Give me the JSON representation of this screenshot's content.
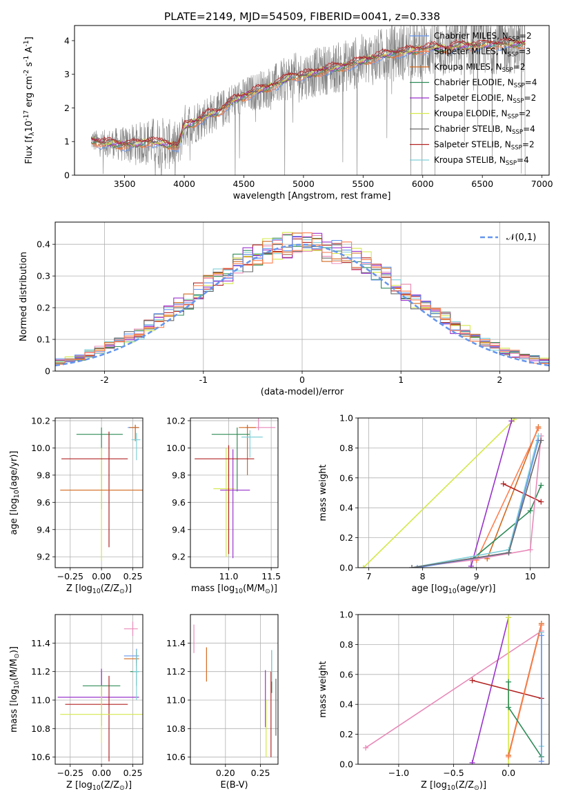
{
  "figure_title": "PLATE=2149, MJD=54509, FIBERID=0041, z=0.338",
  "series_names": [
    "Chabrier MILES, N<sub>SSP</sub>=2",
    "Salpeter MILES, N<sub>SSP</sub>=3",
    "Kroupa MILES, N<sub>SSP</sub>=2",
    "Chabrier ELODIE, N<sub>SSP</sub>=4",
    "Salpeter ELODIE, N<sub>SSP</sub>=2",
    "Kroupa ELODIE, N<sub>SSP</sub>=2",
    "Chabrier STELIB, N<sub>SSP</sub>=4",
    "Salpeter STELIB, N<sub>SSP</sub>=2",
    "Kroupa STELIB, N<sub>SSP</sub>=4"
  ],
  "colors": [
    "#6495ed",
    "#ff7f50",
    "#d2691e",
    "#2e8b57",
    "#9932cc",
    "#d4e84a",
    "#696969",
    "#b22222",
    "#7fcfd8"
  ],
  "model_colors": [
    "#6495ed",
    "#ff7f50",
    "#d2691e",
    "#2e8b57",
    "#9932cc",
    "#d4e84a",
    "#696969",
    "#b22222",
    "#7fcfd8",
    "#e889b8"
  ],
  "chart_data": [
    {
      "id": "spectrum",
      "type": "line",
      "title": "PLATE=2149, MJD=54509, FIBERID=0041, z=0.338",
      "xlabel": "wavelength [Angstrom, rest frame]",
      "ylabel": "Flux [f$_\\lambda$10$^{-17}$ erg cm$^{-2}$ s$^{-1}$ A$^{-1}$]",
      "xlim": [
        3080,
        7060
      ],
      "ylim": [
        0,
        4.45
      ],
      "xticks": [
        3500,
        4000,
        4500,
        5000,
        5500,
        6000,
        6500,
        7000
      ],
      "yticks": [
        0,
        1,
        2,
        3,
        4
      ],
      "legend_position": "top-right",
      "continuum": [
        [
          3220,
          1.05
        ],
        [
          3300,
          0.95
        ],
        [
          3400,
          0.95
        ],
        [
          3500,
          0.9
        ],
        [
          3600,
          0.92
        ],
        [
          3700,
          1.0
        ],
        [
          3800,
          0.95
        ],
        [
          3900,
          0.9
        ],
        [
          3950,
          0.85
        ],
        [
          4000,
          1.45
        ],
        [
          4100,
          1.6
        ],
        [
          4200,
          1.8
        ],
        [
          4300,
          1.9
        ],
        [
          4400,
          2.2
        ],
        [
          4500,
          2.35
        ],
        [
          4600,
          2.5
        ],
        [
          4700,
          2.6
        ],
        [
          4800,
          2.75
        ],
        [
          4900,
          2.95
        ],
        [
          5000,
          2.95
        ],
        [
          5100,
          3.05
        ],
        [
          5200,
          3.15
        ],
        [
          5300,
          3.2
        ],
        [
          5400,
          3.3
        ],
        [
          5500,
          3.4
        ],
        [
          5600,
          3.5
        ],
        [
          5700,
          3.6
        ],
        [
          5800,
          3.65
        ],
        [
          5900,
          3.7
        ],
        [
          6000,
          3.75
        ],
        [
          6100,
          3.8
        ],
        [
          6200,
          3.75
        ],
        [
          6300,
          3.85
        ],
        [
          6400,
          3.85
        ],
        [
          6500,
          3.85
        ],
        [
          6600,
          3.9
        ],
        [
          6700,
          3.9
        ],
        [
          6800,
          3.9
        ]
      ],
      "data_range": [
        3220,
        6860
      ],
      "noise_level": [
        [
          3220,
          0.35
        ],
        [
          3500,
          0.6
        ],
        [
          3800,
          0.9
        ],
        [
          4000,
          0.75
        ],
        [
          4500,
          0.6
        ],
        [
          5000,
          0.8
        ],
        [
          5500,
          0.9
        ],
        [
          6000,
          1.0
        ],
        [
          6500,
          1.0
        ],
        [
          6860,
          1.0
        ]
      ]
    },
    {
      "id": "residuals",
      "type": "histogram",
      "xlabel": "(data-model)/error",
      "ylabel": "Normed distribution",
      "xlim": [
        -2.5,
        2.5
      ],
      "ylim": [
        0,
        0.47
      ],
      "xticks": [
        -2,
        -1,
        0,
        1,
        2
      ],
      "yticks": [
        0.0,
        0.1,
        0.2,
        0.3,
        0.4
      ],
      "reference_curve": "$\\mathcal{N}(0,1)$",
      "bin_width": 0.1,
      "legend_position": "top-right"
    },
    {
      "id": "age_vs_Z",
      "type": "errorbar",
      "xlabel": "Z [log$_{10}$($Z/Z_\\odot$)]",
      "ylabel": "age  [log$_{10}$($age/yr$)]",
      "xlim": [
        -0.37,
        0.33
      ],
      "ylim": [
        9.12,
        10.22
      ],
      "xticks": [
        -0.25,
        0.0,
        0.25
      ],
      "yticks": [
        9.2,
        9.4,
        9.6,
        9.8,
        10.0,
        10.2
      ],
      "xticklabels": [
        "−0.25",
        "0.00",
        "0.25"
      ],
      "yticklabels": [
        "9.2",
        "9.4",
        "9.6",
        "9.8",
        "10.0",
        "10.2"
      ],
      "points": [
        {
          "x": 0.27,
          "y": 10.15,
          "xe": [
            0.06,
            0.03
          ],
          "ye": [
            0.1,
            0.02
          ],
          "c": 0
        },
        {
          "x": 0.27,
          "y": 10.15,
          "xe": [
            0.05,
            0.03
          ],
          "ye": [
            0.1,
            0.02
          ],
          "c": 2
        },
        {
          "x": 0.0,
          "y": 10.1,
          "xe": [
            0.2,
            0.17
          ],
          "ye": [
            0.55,
            0.05
          ],
          "c": 3
        },
        {
          "x": 0.0,
          "y": 9.2,
          "xe": [
            0.0,
            0.0
          ],
          "ye": [
            0.03,
            0.8
          ],
          "c": 5
        },
        {
          "x": 0.06,
          "y": 9.92,
          "xe": [
            0.38,
            0.15
          ],
          "ye": [
            0.65,
            0.2
          ],
          "c": 7
        },
        {
          "x": 0.0,
          "y": 9.69,
          "xe": [
            0.33,
            0.33
          ],
          "ye": [
            0.0,
            0.0
          ],
          "c": 2
        },
        {
          "x": 0.28,
          "y": 10.06,
          "xe": [
            0.04,
            0.03
          ],
          "ye": [
            0.15,
            0.05
          ],
          "c": 8
        }
      ]
    },
    {
      "id": "age_vs_mass",
      "type": "errorbar",
      "xlabel": "mass [log$_{10}$($M/M_\\odot$)]",
      "ylabel": "",
      "xlim": [
        10.55,
        11.58
      ],
      "ylim": [
        9.12,
        10.22
      ],
      "xticks": [
        11.0,
        11.5
      ],
      "yticks": [
        9.2,
        9.4,
        9.6,
        9.8,
        10.0,
        10.2
      ],
      "xticklabels": [
        "11.0",
        "11.5"
      ],
      "yticklabels": [
        "9.2",
        "9.4",
        "9.6",
        "9.8",
        "10.0",
        "10.2"
      ],
      "points": [
        {
          "x": 11.35,
          "y": 10.15,
          "xe": [
            0.15,
            0.2
          ],
          "ye": [
            0.02,
            0.1
          ],
          "c": 9
        },
        {
          "x": 11.22,
          "y": 10.15,
          "xe": [
            0.1,
            0.1
          ],
          "ye": [
            0.35,
            0.02
          ],
          "c": 2
        },
        {
          "x": 11.1,
          "y": 10.1,
          "xe": [
            0.3,
            0.15
          ],
          "ye": [
            0.42,
            0.05
          ],
          "c": 3
        },
        {
          "x": 10.97,
          "y": 9.7,
          "xe": [
            0.15,
            0.1
          ],
          "ye": [
            0.5,
            0.3
          ],
          "c": 5
        },
        {
          "x": 11.05,
          "y": 9.69,
          "xe": [
            0.15,
            0.2
          ],
          "ye": [
            0.5,
            0.3
          ],
          "c": 4
        },
        {
          "x": 11.0,
          "y": 9.92,
          "xe": [
            0.4,
            0.3
          ],
          "ye": [
            0.7,
            0.1
          ],
          "c": 7
        },
        {
          "x": 11.25,
          "y": 10.08,
          "xe": [
            0.1,
            0.15
          ],
          "ye": [
            0.15,
            0.05
          ],
          "c": 8
        }
      ]
    },
    {
      "id": "massweight_vs_age",
      "type": "line",
      "xlabel": "age  [log$_{10}$($age/yr$)]",
      "ylabel": "mass weight",
      "xlim": [
        6.8,
        10.35
      ],
      "ylim": [
        0,
        1.0
      ],
      "xticks": [
        7,
        8,
        9,
        10
      ],
      "yticks": [
        0.0,
        0.2,
        0.4,
        0.6,
        0.8,
        1.0
      ],
      "xticklabels": [
        "7",
        "8",
        "9",
        "10"
      ],
      "yticklabels": [
        "0.0",
        "0.2",
        "0.4",
        "0.6",
        "0.8",
        "1.0"
      ],
      "series": [
        {
          "c": 5,
          "pts": [
            [
              6.9,
              0.0
            ],
            [
              9.7,
              0.99
            ]
          ]
        },
        {
          "c": 4,
          "pts": [
            [
              8.9,
              0.01
            ],
            [
              9.65,
              0.98
            ]
          ]
        },
        {
          "c": 2,
          "pts": [
            [
              9.2,
              0.06
            ],
            [
              10.15,
              0.94
            ]
          ]
        },
        {
          "c": 1,
          "pts": [
            [
              9.0,
              0.05
            ],
            [
              10.15,
              0.93
            ]
          ]
        },
        {
          "c": 3,
          "pts": [
            [
              8.9,
              0.05
            ],
            [
              10.0,
              0.38
            ],
            [
              10.2,
              0.55
            ]
          ]
        },
        {
          "c": 7,
          "pts": [
            [
              9.5,
              0.56
            ],
            [
              10.2,
              0.44
            ]
          ]
        },
        {
          "c": 9,
          "pts": [
            [
              7.8,
              0.0
            ],
            [
              8.9,
              0.05
            ],
            [
              10.0,
              0.12
            ],
            [
              10.2,
              0.88
            ]
          ]
        },
        {
          "c": 8,
          "pts": [
            [
              7.8,
              0.0
            ],
            [
              9.6,
              0.12
            ],
            [
              10.15,
              0.88
            ]
          ]
        },
        {
          "c": 0,
          "pts": [
            [
              7.9,
              0.0
            ],
            [
              9.6,
              0.1
            ],
            [
              10.15,
              0.85
            ]
          ]
        },
        {
          "c": 6,
          "pts": [
            [
              7.8,
              0.0
            ],
            [
              9.6,
              0.1
            ],
            [
              10.2,
              0.85
            ]
          ]
        }
      ]
    },
    {
      "id": "mass_vs_Z",
      "type": "errorbar",
      "xlabel": "Z [log$_{10}$($Z/Z_\\odot$)]",
      "ylabel": "mass [log$_{10}$($M/M_\\odot$)]",
      "xlim": [
        -0.37,
        0.33
      ],
      "ylim": [
        10.55,
        11.6
      ],
      "xticks": [
        -0.25,
        0.0,
        0.25
      ],
      "yticks": [
        10.6,
        10.8,
        11.0,
        11.2,
        11.4
      ],
      "xticklabels": [
        "−0.25",
        "0.00",
        "0.25"
      ],
      "yticklabels": [
        "10.6",
        "10.8",
        "11.0",
        "11.2",
        "11.4"
      ],
      "points": [
        {
          "x": 0.25,
          "y": 11.5,
          "xe": [
            0.07,
            0.04
          ],
          "ye": [
            0.05,
            0.05
          ],
          "c": 9
        },
        {
          "x": 0.28,
          "y": 11.31,
          "xe": [
            0.1,
            0.02
          ],
          "ye": [
            0.05,
            0.05
          ],
          "c": 0
        },
        {
          "x": 0.28,
          "y": 11.29,
          "xe": [
            0.1,
            0.02
          ],
          "ye": [
            0.05,
            0.05
          ],
          "c": 2
        },
        {
          "x": 0.28,
          "y": 11.2,
          "xe": [
            0.05,
            0.02
          ],
          "ye": [
            0.1,
            0.15
          ],
          "c": 3
        },
        {
          "x": 0.0,
          "y": 11.1,
          "xe": [
            0.15,
            0.15
          ],
          "ye": [
            0.1,
            0.1
          ],
          "c": 3
        },
        {
          "x": 0.0,
          "y": 11.02,
          "xe": [
            0.35,
            0.3
          ],
          "ye": [
            0.2,
            0.2
          ],
          "c": 4
        },
        {
          "x": 0.06,
          "y": 10.97,
          "xe": [
            0.35,
            0.15
          ],
          "ye": [
            0.4,
            0.2
          ],
          "c": 7
        },
        {
          "x": 0.0,
          "y": 10.9,
          "xe": [
            0.33,
            0.33
          ],
          "ye": [
            0.2,
            0.2
          ],
          "c": 5
        },
        {
          "x": 0.28,
          "y": 11.2,
          "xe": [
            0.03,
            0.02
          ],
          "ye": [
            0.2,
            0.15
          ],
          "c": 8
        }
      ]
    },
    {
      "id": "mass_vs_EBV",
      "type": "errorbar",
      "xlabel": "E(B-V)",
      "ylabel": "",
      "xlim": [
        0.15,
        0.275
      ],
      "ylim": [
        10.55,
        11.6
      ],
      "xticks": [
        0.2,
        0.25
      ],
      "yticks": [
        10.6,
        10.8,
        11.0,
        11.2,
        11.4
      ],
      "xticklabels": [
        "0.20",
        "0.25"
      ],
      "yticklabels": [
        "10.6",
        "10.8",
        "11.0",
        "11.2",
        "11.4"
      ],
      "points": [
        {
          "x": 0.155,
          "y": 11.43,
          "xe": [
            0,
            0
          ],
          "ye": [
            0.1,
            0.1
          ],
          "c": 9
        },
        {
          "x": 0.173,
          "y": 11.25,
          "xe": [
            0,
            0
          ],
          "ye": [
            0.12,
            0.12
          ],
          "c": 2
        },
        {
          "x": 0.257,
          "y": 11.01,
          "xe": [
            0,
            0
          ],
          "ye": [
            0.2,
            0.2
          ],
          "c": 4
        },
        {
          "x": 0.258,
          "y": 10.8,
          "xe": [
            0,
            0
          ],
          "ye": [
            0.2,
            0.2
          ],
          "c": 5
        },
        {
          "x": 0.265,
          "y": 10.9,
          "xe": [
            0,
            0
          ],
          "ye": [
            0.3,
            0.3
          ],
          "c": 7
        },
        {
          "x": 0.266,
          "y": 11.2,
          "xe": [
            0,
            0
          ],
          "ye": [
            0.15,
            0.15
          ],
          "c": 3
        },
        {
          "x": 0.272,
          "y": 10.95,
          "xe": [
            0,
            0
          ],
          "ye": [
            0.2,
            0.2
          ],
          "c": 6
        },
        {
          "x": 0.266,
          "y": 11.25,
          "xe": [
            0,
            0
          ],
          "ye": [
            0.12,
            0.1
          ],
          "c": 8
        }
      ]
    },
    {
      "id": "massweight_vs_Z",
      "type": "line",
      "xlabel": "Z [log$_{10}$($Z/Z_\\odot$)]",
      "ylabel": "mass weight",
      "xlim": [
        -1.37,
        0.37
      ],
      "ylim": [
        0,
        1.0
      ],
      "xticks": [
        -1.0,
        -0.5,
        0.0
      ],
      "yticks": [
        0.0,
        0.2,
        0.4,
        0.6,
        0.8,
        1.0
      ],
      "xticklabels": [
        "−1.0",
        "−0.5",
        "0.0"
      ],
      "yticklabels": [
        "0.0",
        "0.2",
        "0.4",
        "0.6",
        "0.8",
        "1.0"
      ],
      "series": [
        {
          "c": 9,
          "pts": [
            [
              -1.3,
              0.11
            ],
            [
              0.3,
              0.89
            ]
          ]
        },
        {
          "c": 4,
          "pts": [
            [
              -0.33,
              0.01
            ],
            [
              0.0,
              0.98
            ]
          ]
        },
        {
          "c": 5,
          "pts": [
            [
              0.0,
              0.0
            ],
            [
              0.0,
              0.98
            ]
          ]
        },
        {
          "c": 7,
          "pts": [
            [
              -0.33,
              0.56
            ],
            [
              0.3,
              0.44
            ]
          ]
        },
        {
          "c": 2,
          "pts": [
            [
              0.0,
              0.06
            ],
            [
              0.3,
              0.94
            ]
          ]
        },
        {
          "c": 1,
          "pts": [
            [
              0.0,
              0.05
            ],
            [
              0.3,
              0.93
            ]
          ]
        },
        {
          "c": 3,
          "pts": [
            [
              0.0,
              0.55
            ],
            [
              0.0,
              0.38
            ],
            [
              0.3,
              0.05
            ]
          ]
        },
        {
          "c": 8,
          "pts": [
            [
              0.3,
              0.12
            ],
            [
              0.3,
              0.88
            ]
          ]
        },
        {
          "c": 0,
          "pts": [
            [
              0.3,
              0.02
            ],
            [
              0.3,
              0.86
            ]
          ]
        }
      ]
    }
  ]
}
